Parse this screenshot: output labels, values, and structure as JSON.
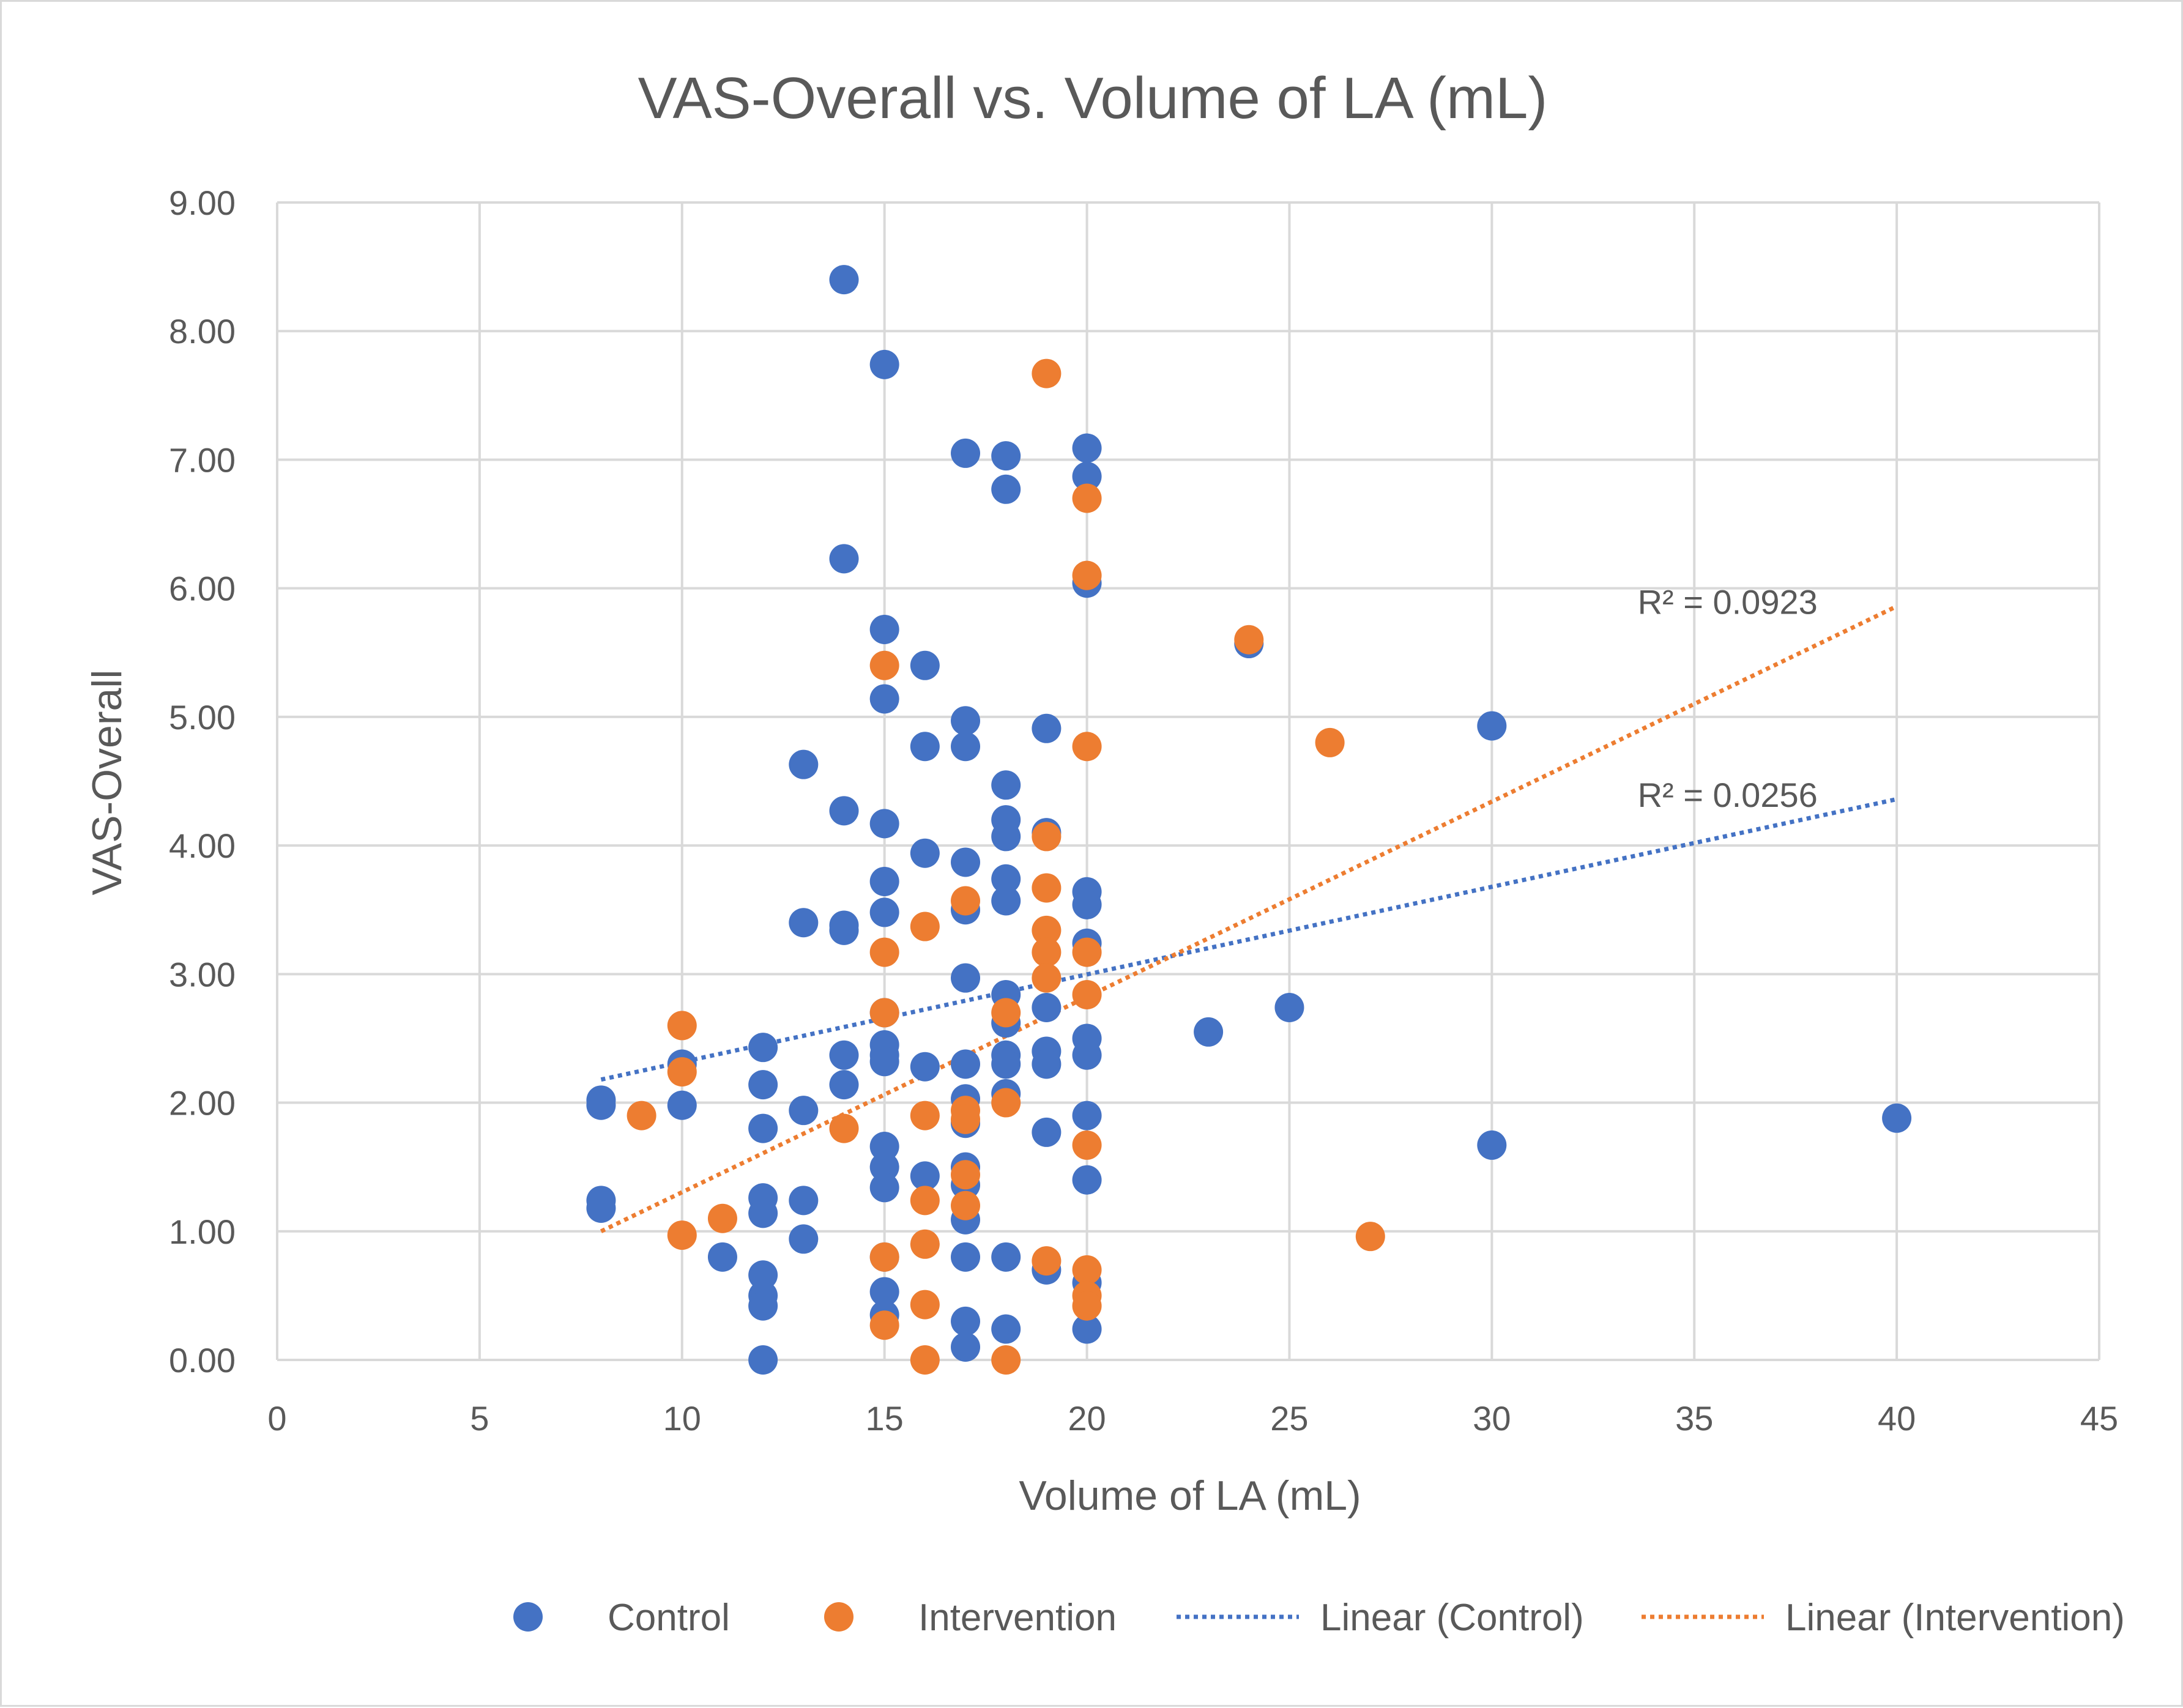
{
  "chart_data": {
    "type": "scatter",
    "title": "VAS-Overall vs. Volume of LA (mL)",
    "xlabel": "Volume of LA (mL)",
    "ylabel": "VAS-Overall",
    "xlim": [
      0,
      45
    ],
    "ylim": [
      0,
      9
    ],
    "x_ticks": [
      "0",
      "5",
      "10",
      "15",
      "20",
      "25",
      "30",
      "35",
      "40",
      "45"
    ],
    "y_ticks": [
      "0.00",
      "1.00",
      "2.00",
      "3.00",
      "4.00",
      "5.00",
      "6.00",
      "7.00",
      "8.00",
      "9.00"
    ],
    "grid": true,
    "legend_position": "bottom",
    "series": [
      {
        "name": "Control",
        "color": "#4472c4",
        "points": [
          [
            8,
            1.98
          ],
          [
            8,
            2.02
          ],
          [
            8,
            1.18
          ],
          [
            8,
            1.24
          ],
          [
            10,
            2.3
          ],
          [
            10,
            1.98
          ],
          [
            11,
            0.8
          ],
          [
            12,
            2.43
          ],
          [
            12,
            2.14
          ],
          [
            12,
            1.8
          ],
          [
            12,
            1.26
          ],
          [
            12,
            1.14
          ],
          [
            12,
            0.66
          ],
          [
            12,
            0.5
          ],
          [
            12,
            0.42
          ],
          [
            12,
            0.0
          ],
          [
            13,
            4.63
          ],
          [
            13,
            3.4
          ],
          [
            13,
            1.94
          ],
          [
            13,
            1.24
          ],
          [
            13,
            0.94
          ],
          [
            14,
            8.4
          ],
          [
            14,
            6.23
          ],
          [
            14,
            4.27
          ],
          [
            14,
            3.38
          ],
          [
            14,
            3.34
          ],
          [
            14,
            2.37
          ],
          [
            14,
            2.14
          ],
          [
            15,
            7.74
          ],
          [
            15,
            5.68
          ],
          [
            15,
            5.14
          ],
          [
            15,
            4.17
          ],
          [
            15,
            3.72
          ],
          [
            15,
            3.48
          ],
          [
            15,
            2.7
          ],
          [
            15,
            2.45
          ],
          [
            15,
            2.37
          ],
          [
            15,
            2.32
          ],
          [
            15,
            1.66
          ],
          [
            15,
            1.5
          ],
          [
            15,
            1.34
          ],
          [
            15,
            0.8
          ],
          [
            15,
            0.53
          ],
          [
            15,
            0.35
          ],
          [
            16,
            5.4
          ],
          [
            16,
            4.77
          ],
          [
            16,
            3.94
          ],
          [
            16,
            2.28
          ],
          [
            16,
            1.43
          ],
          [
            17,
            7.05
          ],
          [
            17,
            4.97
          ],
          [
            17,
            4.77
          ],
          [
            17,
            3.87
          ],
          [
            17,
            3.5
          ],
          [
            17,
            2.97
          ],
          [
            17,
            2.3
          ],
          [
            17,
            2.03
          ],
          [
            17,
            1.84
          ],
          [
            17,
            1.5
          ],
          [
            17,
            1.36
          ],
          [
            17,
            1.09
          ],
          [
            17,
            0.8
          ],
          [
            17,
            0.3
          ],
          [
            17,
            0.1
          ],
          [
            18,
            7.03
          ],
          [
            18,
            6.77
          ],
          [
            18,
            4.47
          ],
          [
            18,
            4.2
          ],
          [
            18,
            4.07
          ],
          [
            18,
            3.74
          ],
          [
            18,
            3.57
          ],
          [
            18,
            2.84
          ],
          [
            18,
            2.62
          ],
          [
            18,
            2.37
          ],
          [
            18,
            2.3
          ],
          [
            18,
            2.07
          ],
          [
            18,
            0.8
          ],
          [
            18,
            0.24
          ],
          [
            19,
            4.91
          ],
          [
            19,
            4.1
          ],
          [
            19,
            2.74
          ],
          [
            19,
            2.4
          ],
          [
            19,
            2.3
          ],
          [
            19,
            1.77
          ],
          [
            19,
            0.7
          ],
          [
            20,
            7.09
          ],
          [
            20,
            6.87
          ],
          [
            20,
            6.04
          ],
          [
            20,
            3.64
          ],
          [
            20,
            3.54
          ],
          [
            20,
            3.24
          ],
          [
            20,
            2.5
          ],
          [
            20,
            2.37
          ],
          [
            20,
            1.9
          ],
          [
            20,
            1.4
          ],
          [
            20,
            0.6
          ],
          [
            20,
            0.24
          ],
          [
            23,
            2.55
          ],
          [
            24,
            5.57
          ],
          [
            25,
            2.74
          ],
          [
            30,
            4.93
          ],
          [
            30,
            1.67
          ],
          [
            40,
            1.88
          ]
        ]
      },
      {
        "name": "Intervention",
        "color": "#ed7d31",
        "points": [
          [
            9,
            1.9
          ],
          [
            10,
            2.6
          ],
          [
            10,
            2.24
          ],
          [
            10,
            0.97
          ],
          [
            11,
            1.1
          ],
          [
            14,
            1.8
          ],
          [
            15,
            5.4
          ],
          [
            15,
            3.17
          ],
          [
            15,
            2.7
          ],
          [
            15,
            0.8
          ],
          [
            15,
            0.27
          ],
          [
            16,
            3.37
          ],
          [
            16,
            1.9
          ],
          [
            16,
            1.24
          ],
          [
            16,
            0.9
          ],
          [
            16,
            0.43
          ],
          [
            16,
            0.0
          ],
          [
            17,
            3.57
          ],
          [
            17,
            1.94
          ],
          [
            17,
            1.87
          ],
          [
            17,
            1.44
          ],
          [
            17,
            1.2
          ],
          [
            18,
            2.7
          ],
          [
            18,
            2.0
          ],
          [
            18,
            0.0
          ],
          [
            19,
            7.67
          ],
          [
            19,
            4.07
          ],
          [
            19,
            3.67
          ],
          [
            19,
            3.34
          ],
          [
            19,
            3.17
          ],
          [
            19,
            2.97
          ],
          [
            19,
            0.77
          ],
          [
            20,
            6.7
          ],
          [
            20,
            6.1
          ],
          [
            20,
            4.77
          ],
          [
            20,
            3.17
          ],
          [
            20,
            2.84
          ],
          [
            20,
            1.67
          ],
          [
            20,
            0.7
          ],
          [
            20,
            0.5
          ],
          [
            20,
            0.42
          ],
          [
            24,
            5.6
          ],
          [
            26,
            4.8
          ],
          [
            27,
            0.96
          ]
        ]
      }
    ],
    "trendlines": [
      {
        "name": "Linear (Control)",
        "color": "#4472c4",
        "x_range": [
          8,
          40
        ],
        "y_range": [
          2.18,
          4.36
        ],
        "label": "R² = 0.0256",
        "label_at": [
          33.6,
          4.3
        ]
      },
      {
        "name": "Linear (Intervention)",
        "color": "#ed7d31",
        "x_range": [
          8,
          40
        ],
        "y_range": [
          1.0,
          5.86
        ],
        "label": "R² = 0.0923",
        "label_at": [
          33.6,
          5.8
        ]
      }
    ]
  }
}
